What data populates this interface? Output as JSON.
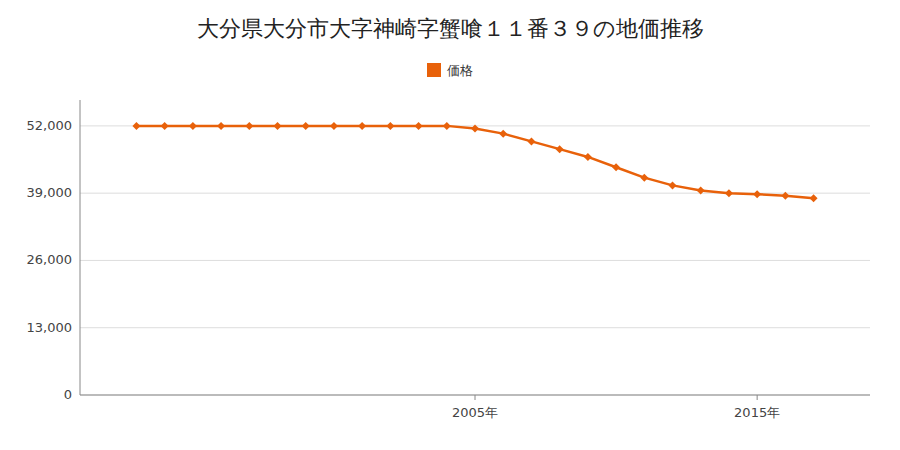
{
  "chart_data": {
    "type": "line",
    "title": "大分県大分市大字神崎字蟹喰１１番３９の地価推移",
    "x": [
      1993,
      1994,
      1995,
      1996,
      1997,
      1998,
      1999,
      2000,
      2001,
      2002,
      2003,
      2004,
      2005,
      2006,
      2007,
      2008,
      2009,
      2010,
      2011,
      2012,
      2013,
      2014,
      2015,
      2016,
      2017
    ],
    "series": [
      {
        "name": "価格",
        "color": "#e8610a",
        "marker": "diamond",
        "values": [
          52000,
          52000,
          52000,
          52000,
          52000,
          52000,
          52000,
          52000,
          52000,
          52000,
          52000,
          52000,
          51500,
          50500,
          49000,
          47500,
          46000,
          44000,
          42000,
          40500,
          39500,
          39000,
          38800,
          38500,
          38000
        ]
      }
    ],
    "xlim": [
      1991,
      2019
    ],
    "xticks": [
      {
        "value": 2005,
        "label": "2005年"
      },
      {
        "value": 2015,
        "label": "2015年"
      }
    ],
    "ylim": [
      0,
      57000
    ],
    "yticks": [
      0,
      {
        "value": 13000,
        "label": "13,000"
      },
      {
        "value": 26000,
        "label": "26,000"
      },
      {
        "value": 39000,
        "label": "39,000"
      },
      {
        "value": 52000,
        "label": "52,000"
      }
    ],
    "grid": true,
    "legend": "top"
  }
}
